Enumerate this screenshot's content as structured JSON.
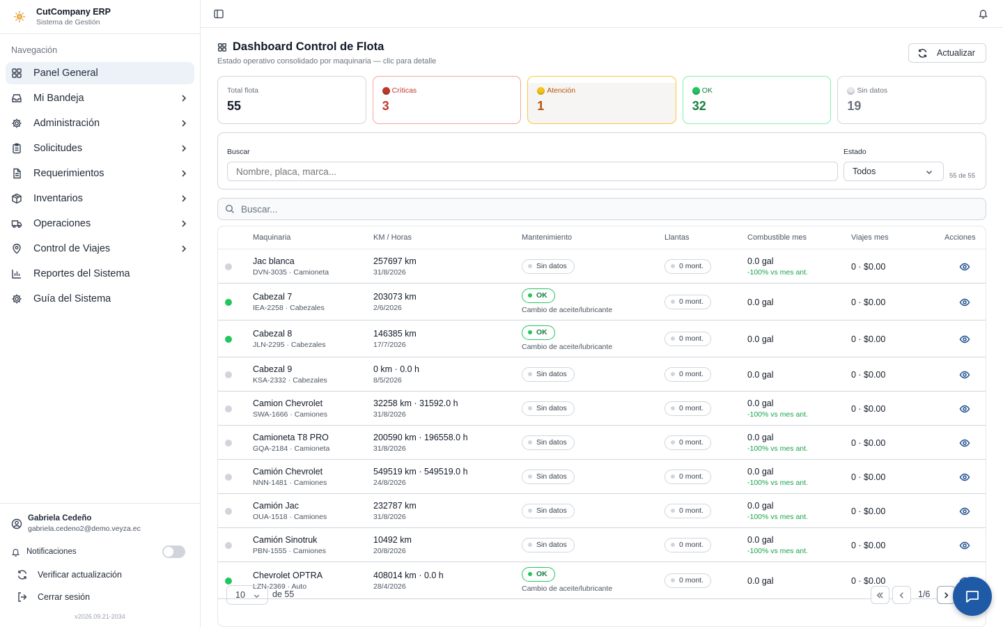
{
  "app": {
    "name": "CutCompany ERP",
    "subtitle": "Sistema de Gestión"
  },
  "sidebar": {
    "section_label": "Navegación",
    "items": [
      {
        "label": "Panel General",
        "icon": "grid-icon",
        "active": true
      },
      {
        "label": "Mi Bandeja",
        "icon": "inbox-icon"
      },
      {
        "label": "Administración",
        "icon": "gear-icon"
      },
      {
        "label": "Solicitudes",
        "icon": "clipboard-icon"
      },
      {
        "label": "Requerimientos",
        "icon": "document-icon"
      },
      {
        "label": "Inventarios",
        "icon": "box-icon"
      },
      {
        "label": "Operaciones",
        "icon": "truck-icon"
      },
      {
        "label": "Control de Viajes",
        "icon": "map-pin-icon"
      },
      {
        "label": "Reportes del Sistema",
        "icon": "bar-chart-icon"
      },
      {
        "label": "Guía del Sistema",
        "icon": "gear-icon"
      }
    ],
    "user": {
      "name": "Gabriela Cedeño",
      "email": "gabriela.cedeno2@demo.veyza.ec"
    },
    "notifications_label": "Notificaciones",
    "notifications_enabled": false,
    "check_update_label": "Verificar actualización",
    "logout_label": "Cerrar sesión",
    "version": "v2026.09.21-2034"
  },
  "page": {
    "title": "Dashboard Control de Flota",
    "subtitle": "Estado operativo consolidado por maquinaria — clic para detalle",
    "refresh_label": "Actualizar"
  },
  "stats": {
    "total": {
      "label": "Total flota",
      "value": "55"
    },
    "critical": {
      "label": "Críticas",
      "value": "3",
      "color": "#c0392b"
    },
    "attention": {
      "label": "Atención",
      "value": "1",
      "color": "#f5c518"
    },
    "ok": {
      "label": "OK",
      "value": "32",
      "color": "#22c55e"
    },
    "nodata": {
      "label": "Sin datos",
      "value": "19",
      "color": "#e5e7eb"
    }
  },
  "filters": {
    "search_label": "Buscar",
    "search_placeholder": "Nombre, placa, marca...",
    "status_label": "Estado",
    "status_value": "Todos",
    "count": "55 de 55"
  },
  "table": {
    "search_placeholder": "Buscar...",
    "columns": [
      "Maquinaria",
      "KM / Horas",
      "Mantenimiento",
      "Llantas",
      "Combustible mes",
      "Viajes mes",
      "Acciones"
    ],
    "rows": [
      {
        "status": "none",
        "name": "Jac blanca",
        "meta": "DVN-3035 · Camioneta",
        "km": "257697 km",
        "date": "31/8/2026",
        "maint": "Sin datos",
        "maint_note": "",
        "tires": "0 mont.",
        "fuel": "0.0 gal",
        "fuel_trend": "-100% vs mes ant.",
        "trips": "0 · $0.00"
      },
      {
        "status": "ok",
        "name": "Cabezal 7",
        "meta": "IEA-2258 · Cabezales",
        "km": "203073 km",
        "date": "2/6/2026",
        "maint": "OK",
        "maint_note": "Cambio de aceite/lubricante",
        "tires": "0 mont.",
        "fuel": "0.0 gal",
        "fuel_trend": "",
        "trips": "0 · $0.00"
      },
      {
        "status": "ok",
        "name": "Cabezal 8",
        "meta": "JLN-2295 · Cabezales",
        "km": "146385 km",
        "date": "17/7/2026",
        "maint": "OK",
        "maint_note": "Cambio de aceite/lubricante",
        "tires": "0 mont.",
        "fuel": "0.0 gal",
        "fuel_trend": "",
        "trips": "0 · $0.00"
      },
      {
        "status": "none",
        "name": "Cabezal 9",
        "meta": "KSA-2332 · Cabezales",
        "km": "0 km · 0.0 h",
        "date": "8/5/2026",
        "maint": "Sin datos",
        "maint_note": "",
        "tires": "0 mont.",
        "fuel": "0.0 gal",
        "fuel_trend": "",
        "trips": "0 · $0.00"
      },
      {
        "status": "none",
        "name": "Camion Chevrolet",
        "meta": "SWA-1666 · Camiones",
        "km": "32258 km · 31592.0 h",
        "date": "31/8/2026",
        "maint": "Sin datos",
        "maint_note": "",
        "tires": "0 mont.",
        "fuel": "0.0 gal",
        "fuel_trend": "-100% vs mes ant.",
        "trips": "0 · $0.00"
      },
      {
        "status": "none",
        "name": "Camioneta T8 PRO",
        "meta": "GQA-2184 · Camioneta",
        "km": "200590 km · 196558.0 h",
        "date": "31/8/2026",
        "maint": "Sin datos",
        "maint_note": "",
        "tires": "0 mont.",
        "fuel": "0.0 gal",
        "fuel_trend": "-100% vs mes ant.",
        "trips": "0 · $0.00"
      },
      {
        "status": "none",
        "name": "Camión Chevrolet",
        "meta": "NNN-1481 · Camiones",
        "km": "549519 km · 549519.0 h",
        "date": "24/8/2026",
        "maint": "Sin datos",
        "maint_note": "",
        "tires": "0 mont.",
        "fuel": "0.0 gal",
        "fuel_trend": "-100% vs mes ant.",
        "trips": "0 · $0.00"
      },
      {
        "status": "none",
        "name": "Camión Jac",
        "meta": "OUA-1518 · Camiones",
        "km": "232787 km",
        "date": "31/8/2026",
        "maint": "Sin datos",
        "maint_note": "",
        "tires": "0 mont.",
        "fuel": "0.0 gal",
        "fuel_trend": "-100% vs mes ant.",
        "trips": "0 · $0.00"
      },
      {
        "status": "none",
        "name": "Camión Sinotruk",
        "meta": "PBN-1555 · Camiones",
        "km": "10492 km",
        "date": "20/8/2026",
        "maint": "Sin datos",
        "maint_note": "",
        "tires": "0 mont.",
        "fuel": "0.0 gal",
        "fuel_trend": "-100% vs mes ant.",
        "trips": "0 · $0.00"
      },
      {
        "status": "ok",
        "name": "Chevrolet OPTRA",
        "meta": "LZN-2369 · Auto",
        "km": "408014 km · 0.0 h",
        "date": "28/4/2026",
        "maint": "OK",
        "maint_note": "Cambio de aceite/lubricante",
        "tires": "0 mont.",
        "fuel": "0.0 gal",
        "fuel_trend": "",
        "trips": "0 · $0.00"
      }
    ]
  },
  "pagination": {
    "page_size": "10",
    "total_label": "de 55",
    "page_info": "1/6"
  },
  "colors": {
    "accent": "#1f5aa6",
    "ok": "#22c55e",
    "none": "#d1d5db",
    "active_nav": "#edf2f9"
  }
}
